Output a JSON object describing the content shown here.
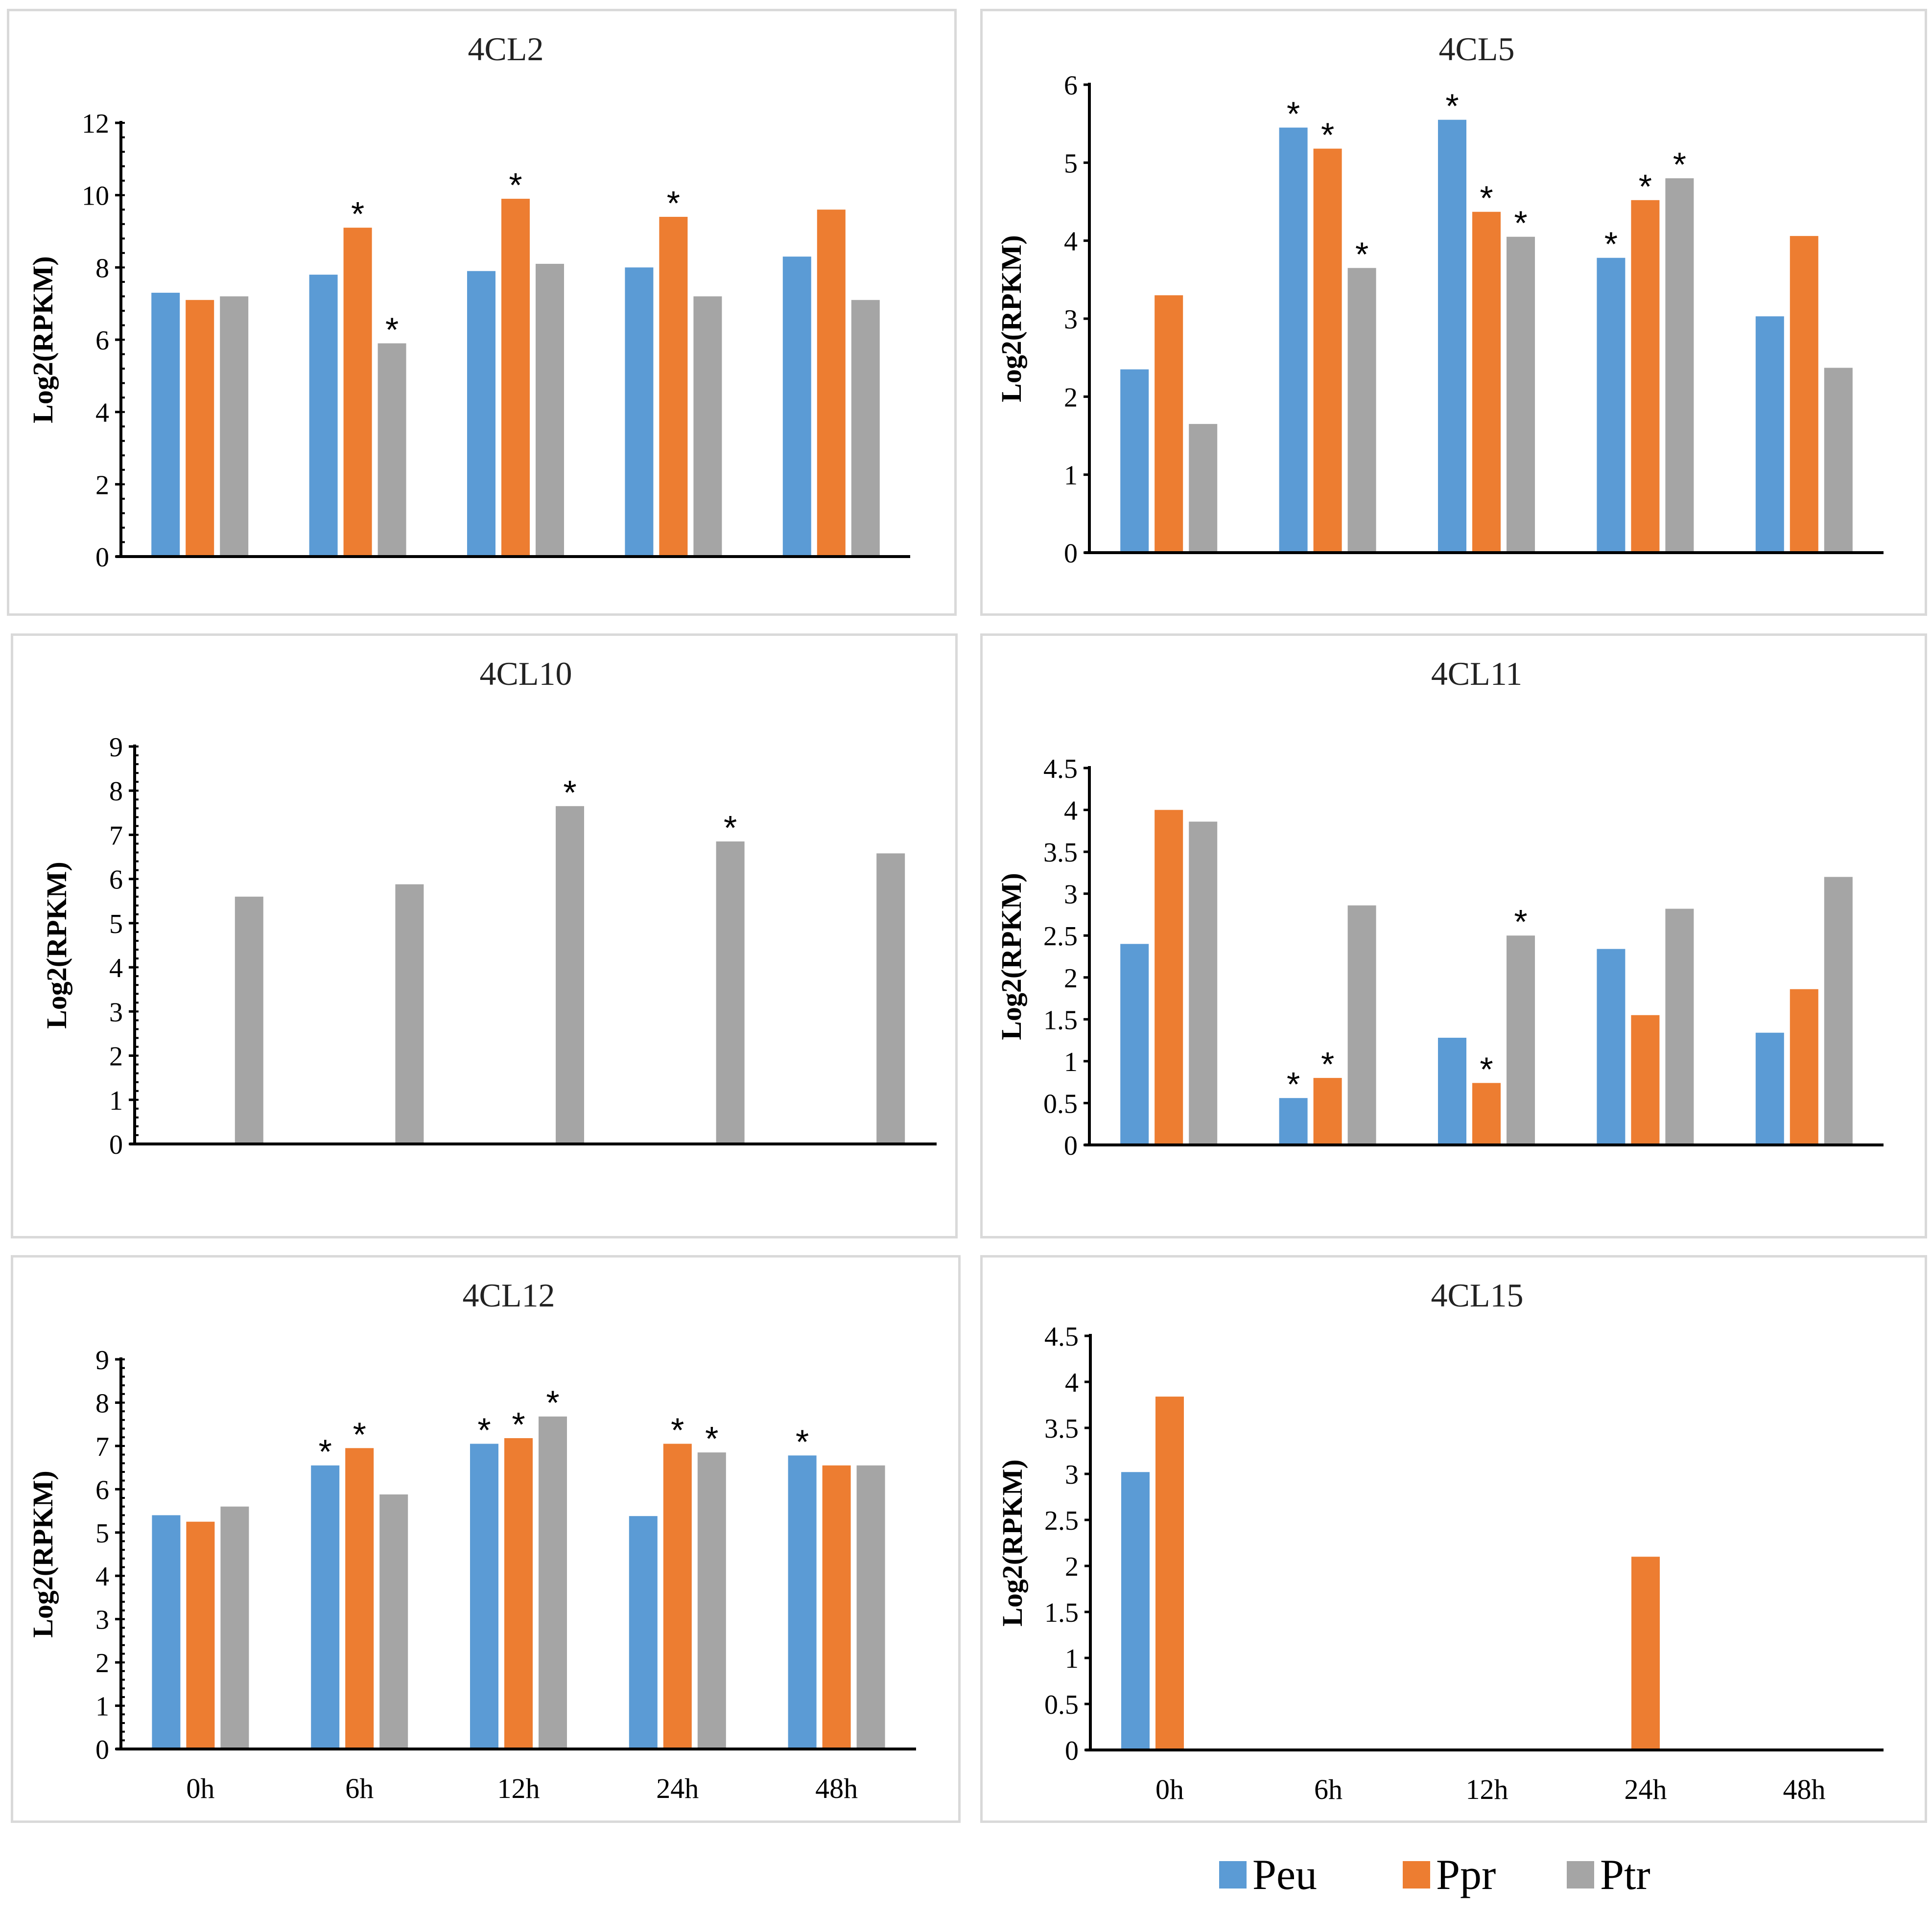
{
  "colors": {
    "Peu": "#5b9bd5",
    "Ppr": "#ed7d31",
    "Ptr": "#a5a5a5"
  },
  "legend": {
    "items": [
      {
        "key": "Peu",
        "label": "Peu"
      },
      {
        "key": "Ppr",
        "label": "Ppr"
      },
      {
        "key": "Ptr",
        "label": "Ptr"
      }
    ]
  },
  "chart_data": [
    {
      "type": "bar",
      "title": "4CL2",
      "ylabel": "Log2(RPKM)",
      "xlabel": "",
      "categories": [
        "0h",
        "6h",
        "12h",
        "24h",
        "48h"
      ],
      "show_xlabels": false,
      "ylim": [
        0,
        12
      ],
      "yticks": [
        0,
        2,
        4,
        6,
        8,
        10,
        12
      ],
      "minor_step": 0.4,
      "series": [
        {
          "name": "Peu",
          "values": [
            7.3,
            7.8,
            7.9,
            8.0,
            8.3
          ],
          "sig": [
            false,
            false,
            false,
            false,
            false
          ]
        },
        {
          "name": "Ppr",
          "values": [
            7.1,
            9.1,
            9.9,
            9.4,
            9.6
          ],
          "sig": [
            false,
            true,
            true,
            true,
            false
          ]
        },
        {
          "name": "Ptr",
          "values": [
            7.2,
            5.9,
            8.1,
            7.2,
            7.1
          ],
          "sig": [
            false,
            true,
            false,
            false,
            false
          ]
        }
      ]
    },
    {
      "type": "bar",
      "title": "4CL5",
      "ylabel": "Log2(RPKM)",
      "xlabel": "",
      "categories": [
        "0h",
        "6h",
        "12h",
        "24h",
        "48h"
      ],
      "show_xlabels": false,
      "ylim": [
        0,
        6
      ],
      "yticks": [
        0,
        1,
        2,
        3,
        4,
        5,
        6
      ],
      "minor_step": 0,
      "series": [
        {
          "name": "Peu",
          "values": [
            2.35,
            5.45,
            5.55,
            3.78,
            3.03
          ],
          "sig": [
            false,
            true,
            true,
            true,
            false
          ]
        },
        {
          "name": "Ppr",
          "values": [
            3.3,
            5.18,
            4.37,
            4.52,
            4.06
          ],
          "sig": [
            false,
            true,
            true,
            true,
            false
          ]
        },
        {
          "name": "Ptr",
          "values": [
            1.65,
            3.65,
            4.05,
            4.8,
            2.37
          ],
          "sig": [
            false,
            true,
            true,
            true,
            false
          ]
        }
      ]
    },
    {
      "type": "bar",
      "title": "4CL10",
      "ylabel": "Log2(RPKM)",
      "xlabel": "",
      "categories": [
        "0h",
        "6h",
        "12h",
        "24h",
        "48h"
      ],
      "show_xlabels": false,
      "ylim": [
        0,
        9
      ],
      "yticks": [
        0,
        1,
        2,
        3,
        4,
        5,
        6,
        7,
        8,
        9
      ],
      "minor_step": 0.2,
      "series": [
        {
          "name": "Peu",
          "values": [
            0,
            0,
            0,
            0,
            0
          ],
          "sig": [
            false,
            false,
            false,
            false,
            false
          ]
        },
        {
          "name": "Ppr",
          "values": [
            0,
            0,
            0,
            0,
            0
          ],
          "sig": [
            false,
            false,
            false,
            false,
            false
          ]
        },
        {
          "name": "Ptr",
          "values": [
            5.6,
            5.88,
            7.65,
            6.85,
            6.58
          ],
          "sig": [
            false,
            false,
            true,
            true,
            false
          ]
        }
      ]
    },
    {
      "type": "bar",
      "title": "4CL11",
      "ylabel": "Log2(RPKM)",
      "xlabel": "",
      "categories": [
        "0h",
        "6h",
        "12h",
        "24h",
        "48h"
      ],
      "show_xlabels": false,
      "ylim": [
        0,
        4.5
      ],
      "yticks": [
        0,
        0.5,
        1,
        1.5,
        2,
        2.5,
        3,
        3.5,
        4,
        4.5
      ],
      "minor_step": 0,
      "series": [
        {
          "name": "Peu",
          "values": [
            2.4,
            0.56,
            1.28,
            2.34,
            1.34
          ],
          "sig": [
            false,
            true,
            false,
            false,
            false
          ]
        },
        {
          "name": "Ppr",
          "values": [
            4.0,
            0.8,
            0.74,
            1.55,
            1.86
          ],
          "sig": [
            false,
            true,
            true,
            false,
            false
          ]
        },
        {
          "name": "Ptr",
          "values": [
            3.86,
            2.86,
            2.5,
            2.82,
            3.2
          ],
          "sig": [
            false,
            false,
            true,
            false,
            false
          ]
        }
      ]
    },
    {
      "type": "bar",
      "title": "4CL12",
      "ylabel": "Log2(RPKM)",
      "xlabel": "",
      "categories": [
        "0h",
        "6h",
        "12h",
        "24h",
        "48h"
      ],
      "show_xlabels": true,
      "ylim": [
        0,
        9
      ],
      "yticks": [
        0,
        1,
        2,
        3,
        4,
        5,
        6,
        7,
        8,
        9
      ],
      "minor_step": 0.2,
      "series": [
        {
          "name": "Peu",
          "values": [
            5.4,
            6.55,
            7.05,
            5.38,
            6.78
          ],
          "sig": [
            false,
            true,
            true,
            false,
            true
          ]
        },
        {
          "name": "Ppr",
          "values": [
            5.25,
            6.95,
            7.18,
            7.05,
            6.55
          ],
          "sig": [
            false,
            true,
            true,
            true,
            false
          ]
        },
        {
          "name": "Ptr",
          "values": [
            5.6,
            5.88,
            7.68,
            6.85,
            6.55
          ],
          "sig": [
            false,
            false,
            true,
            true,
            false
          ]
        }
      ]
    },
    {
      "type": "bar",
      "title": "4CL15",
      "ylabel": "Log2(RPKM)",
      "xlabel": "",
      "categories": [
        "0h",
        "6h",
        "12h",
        "24h",
        "48h"
      ],
      "show_xlabels": true,
      "ylim": [
        0,
        4.5
      ],
      "yticks": [
        0,
        0.5,
        1,
        1.5,
        2,
        2.5,
        3,
        3.5,
        4,
        4.5
      ],
      "minor_step": 0,
      "series": [
        {
          "name": "Peu",
          "values": [
            3.02,
            0,
            0,
            0,
            0
          ],
          "sig": [
            false,
            false,
            false,
            false,
            false
          ]
        },
        {
          "name": "Ppr",
          "values": [
            3.84,
            0,
            0,
            2.1,
            0
          ],
          "sig": [
            false,
            false,
            false,
            false,
            false
          ]
        },
        {
          "name": "Ptr",
          "values": [
            0,
            0,
            0,
            0,
            0
          ],
          "sig": [
            false,
            false,
            false,
            false,
            false
          ]
        }
      ]
    }
  ]
}
